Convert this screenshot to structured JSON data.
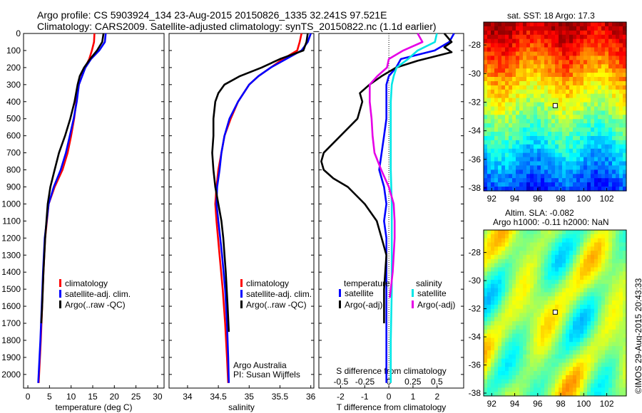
{
  "header": {
    "line1": "Argo profile: CS 5903924_134 23-Aug-2015 20150826_1335 32.241S 97.521E",
    "line2": "Climatology: CARS2009. Satellite-adjusted climatology: synTS_20150822.nc (1.1d earlier)"
  },
  "right_panels": {
    "sst_title": "sat. SST: 18 Argo: 17.3",
    "sla_title1": "Altim. SLA: -0.082",
    "sla_title2": "Argo h1000: -0.11 h2000: NaN",
    "credit": "©IMOS 29-Aug-2015 20:43:33"
  },
  "notes": {
    "argo_line1": "Argo Australia",
    "argo_line2": "PI: Susan Wijffels"
  },
  "colors": {
    "climatology": "#ff0000",
    "satellite": "#0000ff",
    "argo": "#000000",
    "salinity_satellite": "#00e6e6",
    "salinity_argo": "#e600e6"
  },
  "chart_data": [
    {
      "type": "line",
      "xlabel": "temperature (deg C)",
      "ylabel": "",
      "xlim": [
        -1,
        31.5
      ],
      "ylim": [
        2080,
        0
      ],
      "xticks": [
        0,
        5,
        10,
        15,
        20,
        25,
        30
      ],
      "yticks": [
        0,
        100,
        200,
        300,
        400,
        500,
        600,
        700,
        800,
        900,
        1000,
        1100,
        1200,
        1300,
        1400,
        1500,
        1600,
        1700,
        1800,
        1900,
        2000
      ],
      "legend": [
        "climatology",
        "satellite-adj. clim.",
        "Argo(..raw -QC)"
      ],
      "legend_placement": "lower-center",
      "series": [
        {
          "name": "climatology",
          "color": "#ff0000",
          "depth": [
            0,
            50,
            100,
            150,
            200,
            300,
            400,
            500,
            600,
            700,
            800,
            900,
            1000,
            1200,
            1400,
            1600,
            1800,
            2000,
            2050
          ],
          "values": [
            15.4,
            15.3,
            14.8,
            14.2,
            13.2,
            11.8,
            11.2,
            10.7,
            10.0,
            9.2,
            8.0,
            6.2,
            4.8,
            4.0,
            3.6,
            3.3,
            3.0,
            2.6,
            2.5
          ]
        },
        {
          "name": "satellite-adj. clim.",
          "color": "#0000ff",
          "depth": [
            0,
            50,
            100,
            150,
            200,
            300,
            400,
            500,
            600,
            700,
            800,
            900,
            1000,
            1200,
            1400,
            1600,
            1800,
            2000,
            2050
          ],
          "values": [
            18.0,
            17.8,
            16.5,
            14.6,
            13.3,
            11.8,
            11.3,
            10.6,
            9.7,
            8.8,
            7.6,
            6.0,
            4.8,
            3.9,
            3.5,
            3.2,
            2.9,
            2.5,
            2.4
          ]
        },
        {
          "name": "Argo(..raw -QC)",
          "color": "#000000",
          "depth": [
            0,
            50,
            100,
            150,
            200,
            250,
            300,
            400,
            500,
            600,
            700,
            800,
            900,
            1000,
            1200,
            1400,
            1600,
            1700
          ],
          "values": [
            17.5,
            17.2,
            16.0,
            14.4,
            13.0,
            12.0,
            11.5,
            10.8,
            9.8,
            8.6,
            7.2,
            6.2,
            5.2,
            4.6,
            4.0,
            3.6,
            3.3,
            3.1
          ]
        }
      ]
    },
    {
      "type": "line",
      "xlabel": "salinity",
      "ylabel": "",
      "xlim": [
        33.7,
        36.05
      ],
      "ylim": [
        2080,
        0
      ],
      "xticks": [
        34,
        34.5,
        35,
        35.5,
        36
      ],
      "legend": [
        "climatology",
        "satellite-adj. clim.",
        "Argo(..raw -QC)"
      ],
      "legend_placement": "lower-center",
      "series": [
        {
          "name": "climatology",
          "color": "#ff0000",
          "depth": [
            0,
            50,
            100,
            150,
            200,
            250,
            300,
            400,
            500,
            600,
            700,
            800,
            900,
            1000,
            1100,
            1300,
            1500,
            1700,
            1900,
            2050
          ],
          "values": [
            35.85,
            35.82,
            35.78,
            35.55,
            35.35,
            35.15,
            35.0,
            34.82,
            34.7,
            34.6,
            34.55,
            34.5,
            34.47,
            34.45,
            34.47,
            34.52,
            34.57,
            34.61,
            34.64,
            34.66
          ]
        },
        {
          "name": "satellite-adj. clim.",
          "color": "#0000ff",
          "depth": [
            0,
            50,
            100,
            150,
            200,
            250,
            300,
            400,
            500,
            600,
            700,
            800,
            900,
            1000,
            1100,
            1300,
            1500,
            1700,
            1900,
            2050
          ],
          "values": [
            36.0,
            35.95,
            35.85,
            35.6,
            35.35,
            35.15,
            35.0,
            34.82,
            34.68,
            34.6,
            34.55,
            34.52,
            34.48,
            34.47,
            34.5,
            34.56,
            34.61,
            34.64,
            34.66,
            34.67
          ]
        },
        {
          "name": "Argo(..raw -QC)",
          "color": "#000000",
          "depth": [
            0,
            50,
            100,
            150,
            200,
            250,
            300,
            350,
            400,
            500,
            600,
            700,
            800,
            900,
            1000,
            1100,
            1200,
            1400,
            1600,
            1750
          ],
          "values": [
            35.95,
            35.93,
            35.88,
            35.5,
            35.2,
            34.85,
            34.6,
            34.5,
            34.45,
            34.42,
            34.42,
            34.4,
            34.42,
            34.45,
            34.5,
            34.55,
            34.58,
            34.62,
            34.65,
            34.67
          ]
        }
      ]
    },
    {
      "type": "line",
      "xlabel": "T difference from climatology",
      "xlabel_top": "S difference from climatology",
      "xlim": [
        -2.9,
        3.1
      ],
      "xlim_top": [
        -0.73,
        0.78
      ],
      "ylim": [
        2080,
        0
      ],
      "xticks": [
        -2,
        -1,
        0,
        1,
        2
      ],
      "xticks_top": [
        "-0.5",
        "-0.25",
        "0",
        "0.25",
        "0.5"
      ],
      "xticks_top_values": [
        -0.5,
        -0.25,
        0,
        0.25,
        0.5
      ],
      "legend": {
        "temperature_title": "temperature",
        "salinity_title": "salinity",
        "items": [
          {
            "label": "satellite",
            "color": "#0000ff",
            "column": "temperature"
          },
          {
            "label": "Argo(-adj)",
            "color": "#000000",
            "column": "temperature"
          },
          {
            "label": "satellite",
            "color": "#00e6e6",
            "column": "salinity"
          },
          {
            "label": "Argo(-adj)",
            "color": "#e600e6",
            "column": "salinity"
          }
        ]
      },
      "series": [
        {
          "name": "temperature satellite",
          "color": "#0000ff",
          "axis": "T",
          "depth": [
            0,
            50,
            100,
            150,
            200,
            250,
            300,
            400,
            500,
            600,
            700,
            800,
            900,
            1000,
            1100,
            1200,
            1300,
            1500,
            1700,
            1900,
            2050
          ],
          "values": [
            2.7,
            2.5,
            1.9,
            0.5,
            0.3,
            0.0,
            -0.1,
            -0.1,
            -0.1,
            -0.2,
            -0.3,
            -0.4,
            -0.2,
            -0.1,
            -0.2,
            -0.1,
            -0.1,
            -0.1,
            -0.1,
            -0.1,
            -0.1
          ]
        },
        {
          "name": "temperature Argo(-adj)",
          "color": "#000000",
          "axis": "T",
          "depth": [
            0,
            50,
            80,
            110,
            160,
            200,
            250,
            300,
            350,
            400,
            500,
            600,
            700,
            750,
            800,
            850,
            900,
            1000,
            1100,
            1200,
            1300,
            1500,
            1700
          ],
          "values": [
            2.3,
            2.6,
            2.3,
            2.6,
            1.2,
            0.3,
            -0.3,
            -0.8,
            -1.2,
            -1.1,
            -1.3,
            -2.0,
            -2.7,
            -2.8,
            -2.7,
            -2.3,
            -1.7,
            -1.0,
            -0.5,
            -0.3,
            -0.1,
            -0.2,
            -0.2
          ]
        },
        {
          "name": "salinity satellite",
          "color": "#00e6e6",
          "axis": "S",
          "depth": [
            0,
            50,
            100,
            150,
            200,
            250,
            300,
            400,
            600,
            800,
            1000,
            1200,
            1500,
            1800,
            2050
          ],
          "values": [
            0.5,
            0.48,
            0.3,
            0.2,
            0.08,
            0.05,
            0.03,
            0.02,
            0.02,
            0.02,
            0.03,
            0.03,
            0.03,
            0.02,
            0.02
          ]
        },
        {
          "name": "salinity Argo(-adj)",
          "color": "#e600e6",
          "axis": "S",
          "depth": [
            0,
            50,
            100,
            150,
            200,
            250,
            300,
            400,
            500,
            600,
            700,
            800,
            900,
            1000,
            1100,
            1200,
            1300,
            1400,
            1500,
            1550
          ],
          "values": [
            0.3,
            0.35,
            0.15,
            0.0,
            -0.02,
            -0.12,
            -0.2,
            -0.2,
            -0.18,
            -0.17,
            -0.15,
            -0.08,
            0.0,
            0.05,
            0.06,
            0.06,
            0.05,
            0.04,
            0.02,
            0.01
          ]
        }
      ]
    },
    {
      "type": "heatmap",
      "title": "sat. SST: 18 Argo: 17.3",
      "xticks": [
        92,
        94,
        96,
        98,
        100,
        102
      ],
      "yticks": [
        -28,
        -30,
        -32,
        -34,
        -36,
        -38
      ],
      "xlim": [
        91.3,
        103.7
      ],
      "ylim": [
        -38.2,
        -26.4
      ],
      "argo_location": [
        97.521,
        -32.241
      ]
    },
    {
      "type": "heatmap",
      "title": "Altim. SLA: -0.082",
      "subtitle": "Argo h1000: -0.11 h2000: NaN",
      "xticks": [
        92,
        94,
        96,
        98,
        100,
        102
      ],
      "yticks": [
        -28,
        -30,
        -32,
        -34,
        -36,
        -38
      ],
      "xlim": [
        91.3,
        103.7
      ],
      "ylim": [
        -38.2,
        -26.4
      ],
      "argo_location": [
        97.521,
        -32.241
      ]
    }
  ]
}
